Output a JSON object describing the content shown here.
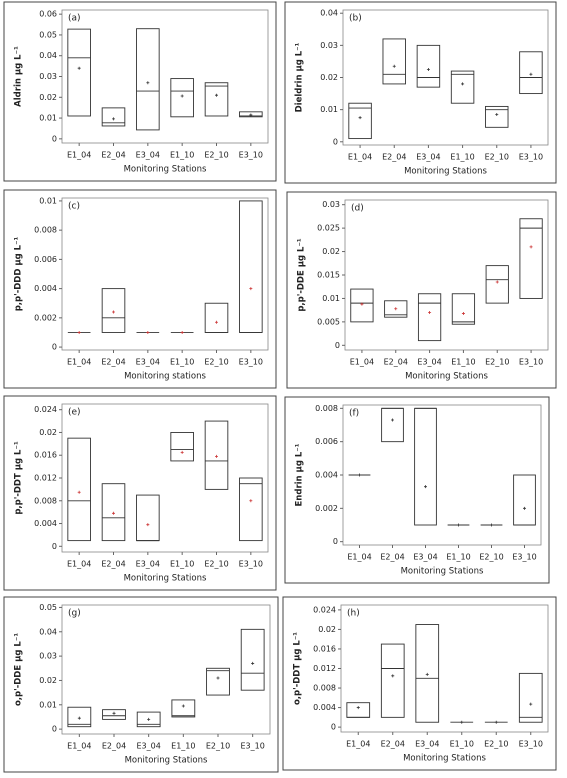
{
  "chart_data": [
    {
      "type": "box",
      "panel_label": "(a)",
      "ylabel": "Aldrin µg L⁻¹",
      "xlabel": "Monitoring Stations",
      "categories": [
        "E1_04",
        "E2_04",
        "E3_04",
        "E1_10",
        "E2_10",
        "E3_10"
      ],
      "low": [
        0.011,
        0.0062,
        0.0043,
        0.0106,
        0.011,
        0.0106
      ],
      "high": [
        0.0528,
        0.0149,
        0.053,
        0.029,
        0.027,
        0.013
      ],
      "median": [
        0.039,
        0.0077,
        0.023,
        0.023,
        0.0254,
        0.011
      ],
      "mean": [
        0.034,
        0.0096,
        0.027,
        0.0206,
        0.021,
        0.0115
      ],
      "ylim": [
        -0.002,
        0.062
      ],
      "yticks": [
        0,
        0.01,
        0.02,
        0.03,
        0.04,
        0.05,
        0.06
      ]
    },
    {
      "type": "box",
      "panel_label": "(b)",
      "ylabel": "Dieldrin µg L⁻¹",
      "xlabel": "Monitoring Stations",
      "categories": [
        "E1_04",
        "E2_04",
        "E3_04",
        "E1_10",
        "E2_10",
        "E3_10"
      ],
      "low": [
        0.001,
        0.018,
        0.017,
        0.012,
        0.0045,
        0.015
      ],
      "high": [
        0.012,
        0.032,
        0.03,
        0.022,
        0.011,
        0.028
      ],
      "median": [
        0.0105,
        0.021,
        0.02,
        0.021,
        0.01,
        0.02
      ],
      "mean": [
        0.0075,
        0.0235,
        0.0225,
        0.018,
        0.0085,
        0.021
      ],
      "ylim": [
        -0.001,
        0.041
      ],
      "yticks": [
        0,
        0.01,
        0.02,
        0.03,
        0.04
      ]
    },
    {
      "type": "box",
      "panel_label": "(c)",
      "ylabel": "p,p'-DDD µg L⁻¹",
      "xlabel": "Monitoring stations",
      "categories": [
        "E1_04",
        "E2_04",
        "E3_04",
        "E1_10",
        "E2_10",
        "E3_10"
      ],
      "low": [
        0.001,
        0.001,
        0.001,
        0.001,
        0.001,
        0.001
      ],
      "high": [
        0.001,
        0.004,
        0.001,
        0.001,
        0.003,
        0.01
      ],
      "median": [
        0.001,
        0.002,
        0.001,
        0.001,
        0.001,
        0.001
      ],
      "mean": [
        0.001,
        0.0024,
        0.001,
        0.001,
        0.0017,
        0.004
      ],
      "ylim": [
        -0.0002,
        0.0102
      ],
      "yticks": [
        0,
        0.002,
        0.004,
        0.006,
        0.008,
        0.01
      ]
    },
    {
      "type": "box",
      "panel_label": "(d)",
      "ylabel": "p,p'-DDE µg L⁻¹",
      "xlabel": "Monitoring Stations",
      "categories": [
        "E1_04",
        "E2_04",
        "E3_04",
        "E1_10",
        "E2_10",
        "E3_10"
      ],
      "low": [
        0.005,
        0.006,
        0.001,
        0.0045,
        0.009,
        0.01
      ],
      "high": [
        0.012,
        0.0095,
        0.011,
        0.011,
        0.017,
        0.027
      ],
      "median": [
        0.009,
        0.0065,
        0.009,
        0.005,
        0.014,
        0.025
      ],
      "mean": [
        0.0088,
        0.0078,
        0.007,
        0.0068,
        0.0135,
        0.021
      ],
      "ylim": [
        -0.001,
        0.031
      ],
      "yticks": [
        0,
        0.005,
        0.01,
        0.015,
        0.02,
        0.025,
        0.03
      ]
    },
    {
      "type": "box",
      "panel_label": "(e)",
      "ylabel": "p,p'-DDT µg L⁻¹",
      "xlabel": "Monitoring Stations",
      "categories": [
        "E1_04",
        "E2_04",
        "E3_04",
        "E1_10",
        "E2_10",
        "E3_10"
      ],
      "low": [
        0.001,
        0.001,
        0.001,
        0.015,
        0.01,
        0.001
      ],
      "high": [
        0.019,
        0.011,
        0.009,
        0.02,
        0.022,
        0.012
      ],
      "median": [
        0.008,
        0.005,
        0.001,
        0.017,
        0.015,
        0.011
      ],
      "mean": [
        0.0095,
        0.0058,
        0.0038,
        0.0165,
        0.0158,
        0.008
      ],
      "ylim": [
        -0.001,
        0.025
      ],
      "yticks": [
        0,
        0.004,
        0.008,
        0.012,
        0.016,
        0.02,
        0.024
      ]
    },
    {
      "type": "box",
      "panel_label": "(f)",
      "ylabel": "Endrin µg L⁻¹",
      "xlabel": "Monitoring Stations",
      "categories": [
        "E1_04",
        "E2_04",
        "E3_04",
        "E1_10",
        "E2_10",
        "E3_10"
      ],
      "low": [
        0.004,
        0.006,
        0.001,
        0.001,
        0.001,
        0.001
      ],
      "high": [
        0.004,
        0.008,
        0.008,
        0.001,
        0.001,
        0.004
      ],
      "median": [
        0.004,
        0.008,
        0.008,
        0.001,
        0.001,
        0.001
      ],
      "mean": [
        0.004,
        0.0073,
        0.0033,
        0.001,
        0.001,
        0.002
      ],
      "ylim": [
        -0.0002,
        0.0082
      ],
      "yticks": [
        0,
        0.002,
        0.004,
        0.006,
        0.008
      ]
    },
    {
      "type": "box",
      "panel_label": "(g)",
      "ylabel": "o,p'-DDE µg L⁻¹",
      "xlabel": "Monitoring Stations",
      "categories": [
        "E1_04",
        "E2_04",
        "E3_04",
        "E1_10",
        "E2_10",
        "E3_10"
      ],
      "low": [
        0.001,
        0.004,
        0.001,
        0.005,
        0.014,
        0.016
      ],
      "high": [
        0.009,
        0.008,
        0.007,
        0.012,
        0.025,
        0.041
      ],
      "median": [
        0.002,
        0.0055,
        0.002,
        0.0055,
        0.024,
        0.023
      ],
      "mean": [
        0.0045,
        0.0065,
        0.004,
        0.0095,
        0.021,
        0.027
      ],
      "ylim": [
        -0.002,
        0.051
      ],
      "yticks": [
        0,
        0.01,
        0.02,
        0.03,
        0.04,
        0.05
      ]
    },
    {
      "type": "box",
      "panel_label": "(h)",
      "ylabel": "o,p'-DDT µg L⁻¹",
      "xlabel": "Monitoring Stations",
      "categories": [
        "E1_04",
        "E2_04",
        "E3_04",
        "E1_10",
        "E2_10",
        "E3_10"
      ],
      "low": [
        0.002,
        0.002,
        0.001,
        0.001,
        0.001,
        0.001
      ],
      "high": [
        0.005,
        0.017,
        0.021,
        0.001,
        0.001,
        0.011
      ],
      "median": [
        0.002,
        0.012,
        0.01,
        0.001,
        0.001,
        0.002
      ],
      "mean": [
        0.004,
        0.0105,
        0.0108,
        0.001,
        0.001,
        0.0047
      ],
      "ylim": [
        -0.001,
        0.025
      ],
      "yticks": [
        0,
        0.004,
        0.008,
        0.012,
        0.016,
        0.02,
        0.024
      ]
    }
  ]
}
